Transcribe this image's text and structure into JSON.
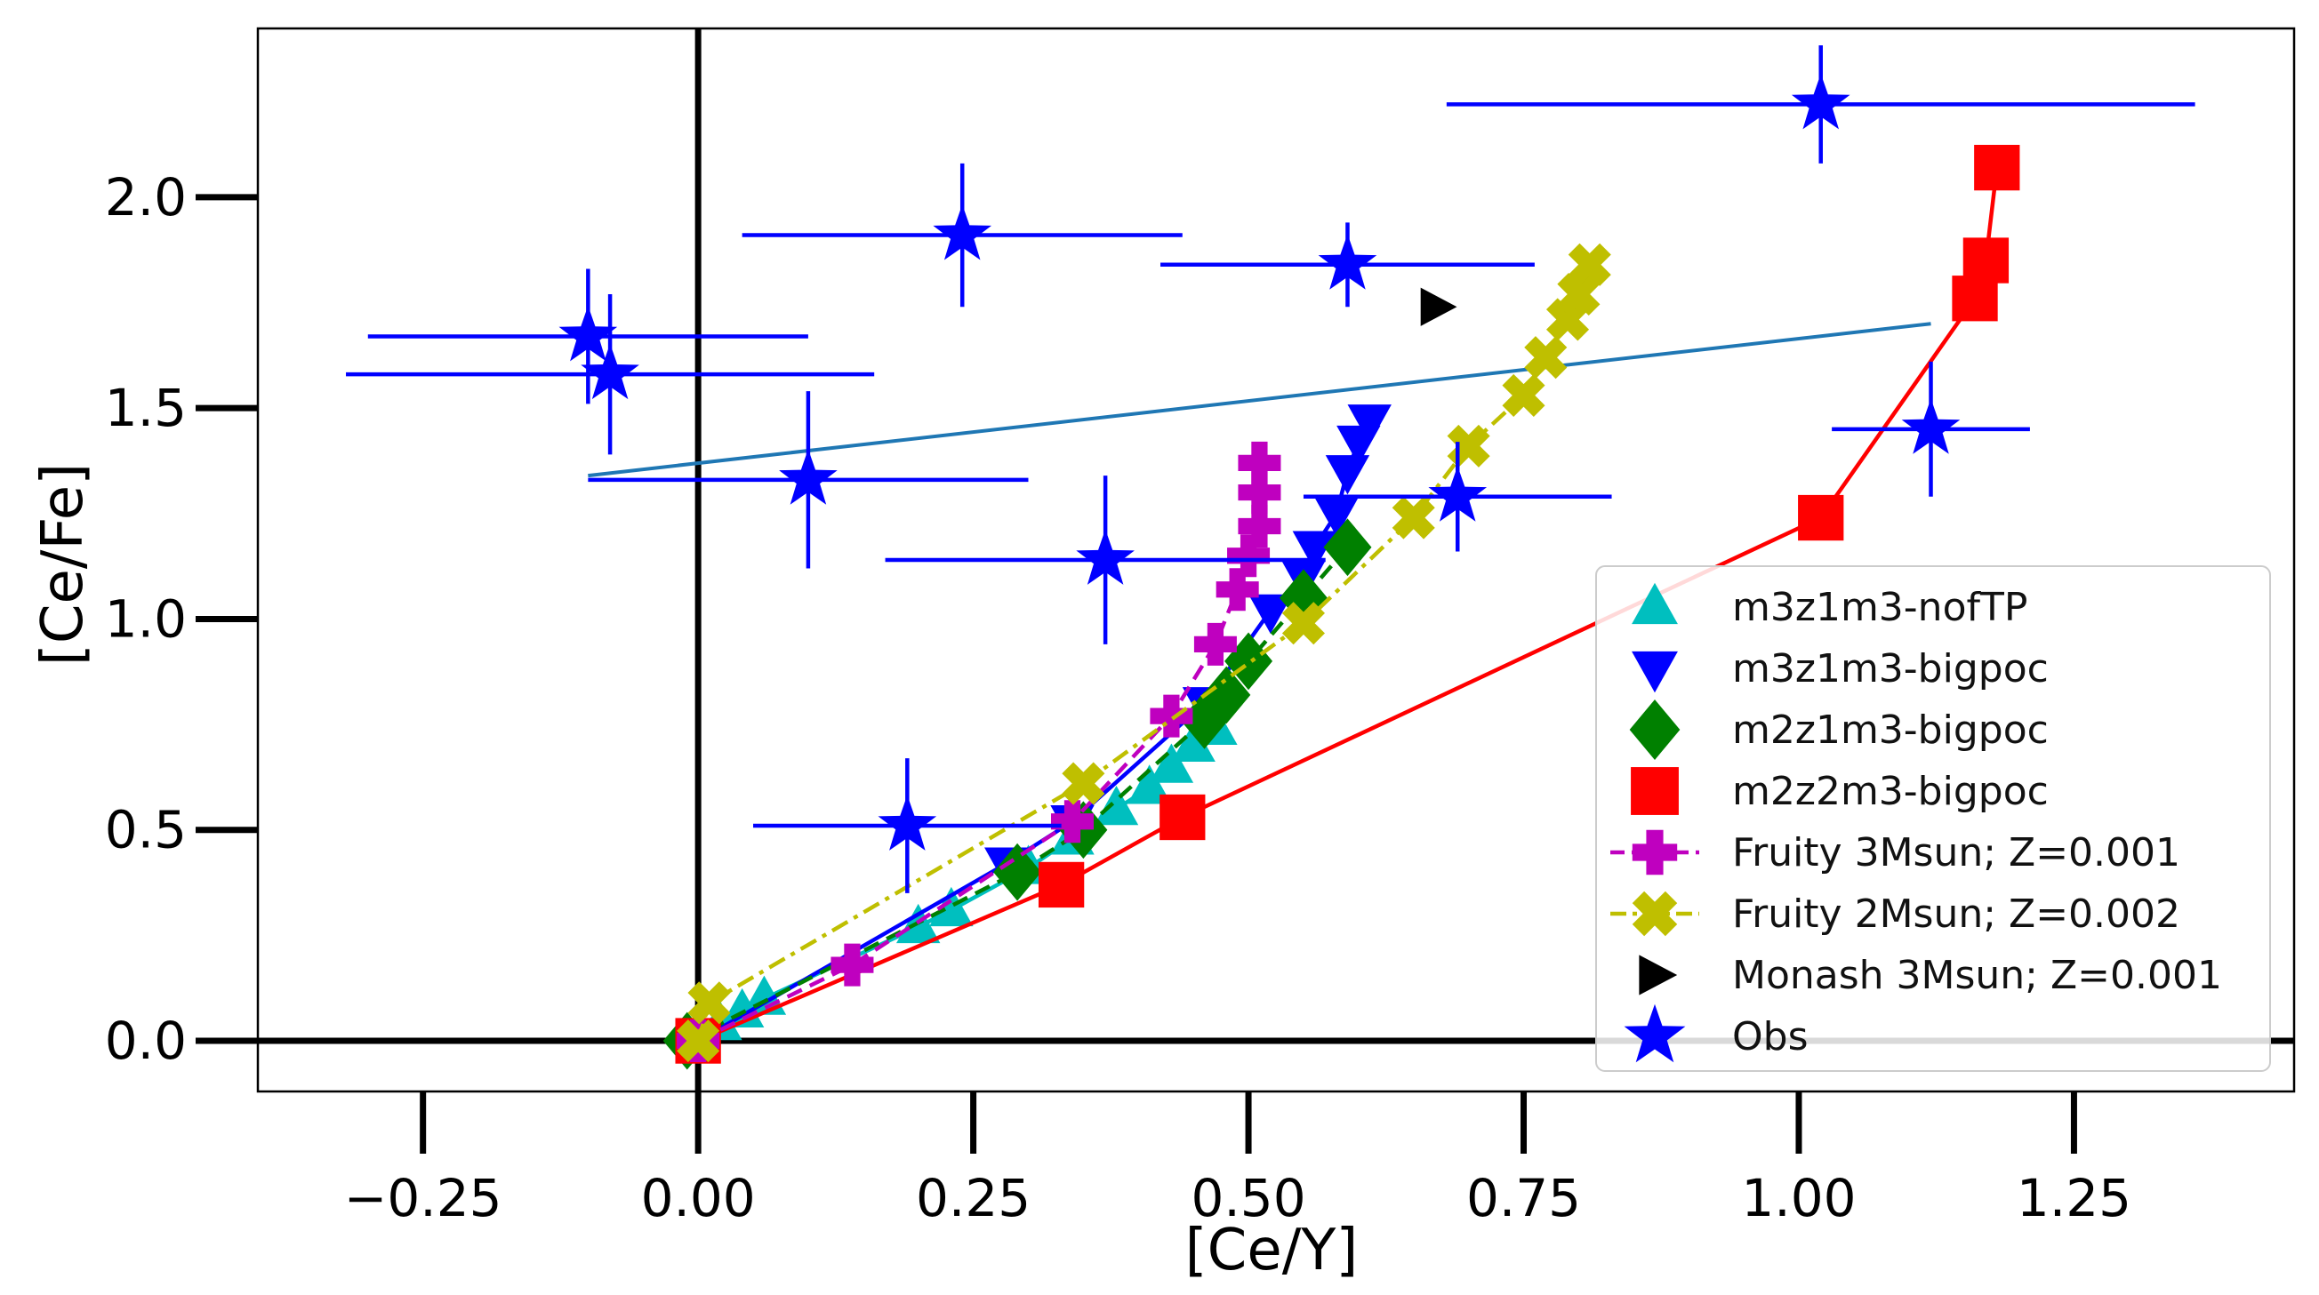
{
  "chart_data": {
    "type": "scatter",
    "title": "",
    "xlabel": "[Ce/Y]",
    "ylabel": "[Ce/Fe]",
    "xlim": [
      -0.4,
      1.45
    ],
    "ylim": [
      -0.12,
      2.4
    ],
    "xticks": [
      -0.25,
      0.0,
      0.25,
      0.5,
      0.75,
      1.0,
      1.25
    ],
    "xtick_labels": [
      "−0.25",
      "0.00",
      "0.25",
      "0.50",
      "0.75",
      "1.00",
      "1.25"
    ],
    "yticks": [
      0.0,
      0.5,
      1.0,
      1.5,
      2.0
    ],
    "ytick_labels": [
      "0.0",
      "0.5",
      "1.0",
      "1.5",
      "2.0"
    ],
    "grid": false,
    "legend_position": "lower-right",
    "reference_lines": {
      "x": 0.0,
      "y": 0.0,
      "color": "#000000"
    },
    "fit_line": {
      "color": "#1f77b4",
      "points": [
        [
          -0.1,
          1.34
        ],
        [
          1.12,
          1.7
        ]
      ]
    },
    "series": [
      {
        "name": "m3z1m3-nofTP",
        "color": "#00bfbf",
        "marker": "triangle-up",
        "line": "solid",
        "points": [
          [
            0.0,
            0.0
          ],
          [
            0.02,
            0.04
          ],
          [
            0.04,
            0.07
          ],
          [
            0.06,
            0.1
          ],
          [
            0.2,
            0.27
          ],
          [
            0.23,
            0.31
          ],
          [
            0.3,
            0.41
          ],
          [
            0.34,
            0.48
          ],
          [
            0.38,
            0.55
          ],
          [
            0.41,
            0.6
          ],
          [
            0.43,
            0.65
          ],
          [
            0.45,
            0.7
          ],
          [
            0.47,
            0.74
          ]
        ]
      },
      {
        "name": "m3z1m3-bigpoc",
        "color": "#0000ff",
        "marker": "triangle-down",
        "line": "solid",
        "points": [
          [
            0.0,
            0.0
          ],
          [
            0.28,
            0.42
          ],
          [
            0.34,
            0.52
          ],
          [
            0.46,
            0.8
          ],
          [
            0.52,
            1.02
          ],
          [
            0.55,
            1.1
          ],
          [
            0.56,
            1.17
          ],
          [
            0.58,
            1.25
          ],
          [
            0.59,
            1.35
          ],
          [
            0.6,
            1.42
          ],
          [
            0.61,
            1.47
          ]
        ]
      },
      {
        "name": "m2z1m3-bigpoc",
        "color": "#008000",
        "marker": "diamond",
        "line": "dashed",
        "points": [
          [
            -0.01,
            0.0
          ],
          [
            0.29,
            0.4
          ],
          [
            0.35,
            0.5
          ],
          [
            0.46,
            0.76
          ],
          [
            0.48,
            0.82
          ],
          [
            0.5,
            0.9
          ],
          [
            0.55,
            1.05
          ],
          [
            0.59,
            1.17
          ]
        ]
      },
      {
        "name": "m2z2m3-bigpoc",
        "color": "#ff0000",
        "marker": "square",
        "line": "solid",
        "points": [
          [
            0.0,
            0.0
          ],
          [
            0.33,
            0.37
          ],
          [
            0.44,
            0.53
          ],
          [
            1.02,
            1.24
          ],
          [
            1.16,
            1.76
          ],
          [
            1.17,
            1.85
          ],
          [
            1.18,
            2.07
          ]
        ]
      },
      {
        "name": "Fruity 3Msun; Z=0.001",
        "color": "#bf00bf",
        "marker": "plus",
        "line": "dashed",
        "points": [
          [
            0.0,
            0.0
          ],
          [
            0.14,
            0.18
          ],
          [
            0.34,
            0.52
          ],
          [
            0.43,
            0.77
          ],
          [
            0.47,
            0.94
          ],
          [
            0.49,
            1.07
          ],
          [
            0.5,
            1.15
          ],
          [
            0.51,
            1.22
          ],
          [
            0.51,
            1.3
          ],
          [
            0.51,
            1.37
          ]
        ]
      },
      {
        "name": "Fruity 2Msun; Z=0.002",
        "color": "#bfbf00",
        "marker": "x",
        "line": "dashdot",
        "points": [
          [
            0.0,
            0.0
          ],
          [
            0.01,
            0.09
          ],
          [
            0.35,
            0.61
          ],
          [
            0.55,
            0.99
          ],
          [
            0.65,
            1.24
          ],
          [
            0.7,
            1.41
          ],
          [
            0.75,
            1.53
          ],
          [
            0.77,
            1.62
          ],
          [
            0.79,
            1.71
          ],
          [
            0.8,
            1.77
          ],
          [
            0.81,
            1.84
          ]
        ]
      },
      {
        "name": "Monash 3Msun; Z=0.001",
        "color": "#000000",
        "marker": "triangle-right",
        "line": "none",
        "points": [
          [
            0.67,
            1.74
          ]
        ]
      },
      {
        "name": "Obs",
        "color": "#0000ff",
        "marker": "star",
        "line": "none",
        "points": [
          [
            -0.1,
            1.67,
            0.2,
            0.16
          ],
          [
            -0.08,
            1.58,
            0.24,
            0.19
          ],
          [
            0.1,
            1.33,
            0.2,
            0.21
          ],
          [
            0.24,
            1.91,
            0.2,
            0.17
          ],
          [
            0.19,
            0.51,
            0.14,
            0.16
          ],
          [
            0.37,
            1.14,
            0.2,
            0.2
          ],
          [
            0.59,
            1.84,
            0.17,
            0.1
          ],
          [
            0.69,
            1.29,
            0.14,
            0.13
          ],
          [
            1.02,
            2.22,
            0.34,
            0.14
          ],
          [
            1.12,
            1.45,
            0.09,
            0.16
          ]
        ]
      }
    ]
  }
}
